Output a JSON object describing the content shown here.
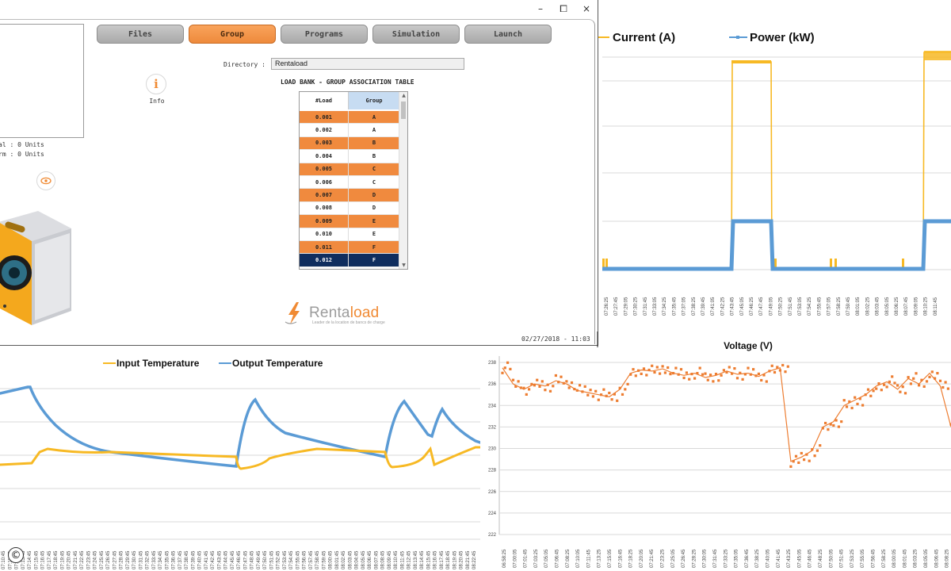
{
  "window_controls": {
    "minimize": "–",
    "maximize": "⧠",
    "close": "×"
  },
  "app": {
    "tabs": [
      {
        "label": "Files",
        "active": false
      },
      {
        "label": "Group",
        "active": true
      },
      {
        "label": "Programs",
        "active": false
      },
      {
        "label": "Simulation",
        "active": false
      },
      {
        "label": "Launch",
        "active": false
      }
    ],
    "units_total": "al : 0 Units",
    "units_other": "rm : 0 Units",
    "info_label": "Info",
    "directory_label": "Directory :",
    "directory_value": "Rentaload",
    "table_title": "LOAD BANK - GROUP ASSOCIATION TABLE",
    "table_headers": [
      "#Load",
      "Group"
    ],
    "table_rows": [
      [
        "0.001",
        "A"
      ],
      [
        "0.002",
        "A"
      ],
      [
        "0.003",
        "B"
      ],
      [
        "0.004",
        "B"
      ],
      [
        "0.005",
        "C"
      ],
      [
        "0.006",
        "C"
      ],
      [
        "0.007",
        "D"
      ],
      [
        "0.008",
        "D"
      ],
      [
        "0.009",
        "E"
      ],
      [
        "0.010",
        "E"
      ],
      [
        "0.011",
        "F"
      ],
      [
        "0.012",
        "F"
      ]
    ],
    "selected_row": 11,
    "logo_text_grey": "Renta",
    "logo_text_orange": "load",
    "logo_tagline": "Leader de la location de bancs de charge",
    "datetime": "02/27/2018 - 11:03",
    "accent_color": "#f08a33",
    "selected_color": "#0f2d5e"
  },
  "chart_data": [
    {
      "type": "line",
      "series": [
        {
          "name": "Current (A)",
          "color": "#f7b924"
        },
        {
          "name": "Power (kW)",
          "color": "#5b9bd5"
        }
      ],
      "x": [
        "07:26:25",
        "07:27:45",
        "07:29:05",
        "07:30:25",
        "07:31:45",
        "07:33:05",
        "07:34:25",
        "07:35:45",
        "07:37:05",
        "07:38:25",
        "07:39:45",
        "07:41:05",
        "07:42:25",
        "07:43:45",
        "07:45:05",
        "07:46:25",
        "07:47:45",
        "07:49:05",
        "07:50:25",
        "07:51:45",
        "07:53:05",
        "07:54:25",
        "07:55:45",
        "07:57:05",
        "07:58:25",
        "07:59:45",
        "08:01:05",
        "08:02:25",
        "08:03:45",
        "08:05:05",
        "08:06:25",
        "08:07:45",
        "08:09:05",
        "08:10:25",
        "08:11:45"
      ],
      "grid": true,
      "legend": "top-left"
    },
    {
      "type": "line",
      "series": [
        {
          "name": "Input Temperature",
          "color": "#f7b924"
        },
        {
          "name": "Output Temperature",
          "color": "#5b9bd5"
        }
      ],
      "x": [
        "07:10:45",
        "07:11:45",
        "07:12:45",
        "07:13:45",
        "07:14:45",
        "07:15:45",
        "07:16:45",
        "07:17:45",
        "07:18:45",
        "07:19:45",
        "07:20:45",
        "07:21:45",
        "07:22:45",
        "07:23:45",
        "07:24:45",
        "07:25:45",
        "07:26:45",
        "07:27:45",
        "07:28:45",
        "07:29:45",
        "07:30:45",
        "07:31:45",
        "07:32:45",
        "07:33:45",
        "07:34:45",
        "07:35:45",
        "07:36:45",
        "07:37:45",
        "07:38:45",
        "07:39:45",
        "07:40:45",
        "07:41:45",
        "07:42:45",
        "07:43:45",
        "07:44:45",
        "07:45:45",
        "07:46:45",
        "07:47:45",
        "07:48:45",
        "07:49:45",
        "07:50:45",
        "07:51:45",
        "07:52:45",
        "07:53:45",
        "07:54:45",
        "07:55:45",
        "07:56:45",
        "07:57:45",
        "07:58:45",
        "07:59:45",
        "08:00:45",
        "08:01:45",
        "08:02:45",
        "08:03:45",
        "08:04:45",
        "08:05:45",
        "08:06:45",
        "08:07:45",
        "08:08:45",
        "08:09:45",
        "08:10:45",
        "08:11:45",
        "08:12:45",
        "08:13:45",
        "08:14:45",
        "08:15:45",
        "08:16:45",
        "08:17:45",
        "08:18:45",
        "08:19:45",
        "08:20:45",
        "08:21:45",
        "08:22:45"
      ],
      "grid": true,
      "legend": "top-center"
    },
    {
      "type": "line",
      "title": "Voltage (V)",
      "series": [
        {
          "name": "Voltage (V)",
          "color": "#ed7d31"
        }
      ],
      "ylim": [
        222,
        238
      ],
      "yticks": [
        222,
        224,
        226,
        228,
        230,
        232,
        234,
        236,
        238
      ],
      "x": [
        "06:58:25",
        "07:00:05",
        "07:01:45",
        "07:03:25",
        "07:05:05",
        "07:06:45",
        "07:08:25",
        "07:10:05",
        "07:11:45",
        "07:13:25",
        "07:15:05",
        "07:16:45",
        "07:18:25",
        "07:20:05",
        "07:21:45",
        "07:23:25",
        "07:25:05",
        "07:26:45",
        "07:28:25",
        "07:30:05",
        "07:31:45",
        "07:33:25",
        "07:35:05",
        "07:36:45",
        "07:38:25",
        "07:40:05",
        "07:41:45",
        "07:43:25",
        "07:45:05",
        "07:46:45",
        "07:48:25",
        "07:50:05",
        "07:51:45",
        "07:53:25",
        "07:55:05",
        "07:56:45",
        "07:58:25",
        "08:00:05",
        "08:01:45",
        "08:03:25",
        "08:05:05",
        "08:06:45",
        "08:08:25"
      ],
      "values": [
        237.5,
        236,
        235.5,
        236,
        235.8,
        236.3,
        236,
        235.4,
        235.2,
        235,
        234.8,
        235.5,
        237,
        237.3,
        237.2,
        237.4,
        237,
        236.8,
        237,
        236.6,
        236.8,
        237.2,
        236.9,
        237,
        236.7,
        237.2,
        237.5,
        228.8,
        229.2,
        229.8,
        232,
        232.5,
        234,
        234.5,
        235,
        235.8,
        236.2,
        235.5,
        236.5,
        236,
        237,
        235.8,
        232
      ],
      "grid": true
    }
  ],
  "copyright_symbol": "©"
}
